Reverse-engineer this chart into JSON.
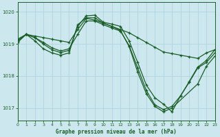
{
  "background_color": "#cce8ee",
  "grid_color": "#aed4dc",
  "line_color": "#1a5c28",
  "title": "Graphe pression niveau de la mer (hPa)",
  "xlim": [
    0,
    23
  ],
  "ylim": [
    1016.6,
    1020.3
  ],
  "yticks": [
    1017,
    1018,
    1019,
    1020
  ],
  "xticks": [
    0,
    1,
    2,
    3,
    4,
    5,
    6,
    7,
    8,
    9,
    10,
    11,
    12,
    13,
    14,
    15,
    16,
    17,
    18,
    19,
    20,
    21,
    22,
    23
  ],
  "series": [
    {
      "x": [
        0,
        1,
        2,
        3,
        4,
        5,
        6,
        7,
        8,
        9,
        10,
        11,
        12,
        13,
        14,
        15,
        16,
        17,
        18,
        19,
        20,
        21,
        22,
        23
      ],
      "y": [
        1019.15,
        1019.3,
        1019.25,
        1019.2,
        1019.15,
        1019.1,
        1019.05,
        1019.45,
        1019.8,
        1019.75,
        1019.65,
        1019.55,
        1019.45,
        1019.35,
        1019.2,
        1019.05,
        1018.9,
        1018.75,
        1018.7,
        1018.65,
        1018.6,
        1018.55,
        1018.72,
        1018.82
      ]
    },
    {
      "x": [
        0,
        1,
        2,
        3,
        4,
        5,
        6,
        7,
        8,
        9,
        10,
        11,
        12,
        13,
        14,
        15,
        16,
        17,
        18,
        19,
        20,
        21,
        22,
        23
      ],
      "y": [
        1019.1,
        1019.3,
        1019.2,
        1019.05,
        1018.88,
        1018.78,
        1018.85,
        1019.3,
        1019.72,
        1019.72,
        1019.6,
        1019.5,
        1019.4,
        1018.95,
        1018.25,
        1017.55,
        1017.1,
        1016.95,
        1017.05,
        1017.38,
        1017.8,
        1018.25,
        1018.42,
        1018.72
      ]
    },
    {
      "x": [
        0,
        1,
        2,
        3,
        4,
        5,
        6,
        7,
        8,
        9,
        10,
        11,
        12,
        13,
        14,
        15,
        16,
        17,
        18,
        19,
        20,
        21,
        22,
        23
      ],
      "y": [
        1019.1,
        1019.3,
        1019.2,
        1019.0,
        1018.82,
        1018.73,
        1018.8,
        1019.55,
        1019.88,
        1019.9,
        1019.68,
        1019.62,
        1019.55,
        1019.1,
        1018.42,
        1017.72,
        1017.32,
        1017.12,
        1016.88,
        1017.38,
        1017.82,
        1018.28,
        1018.48,
        1018.82
      ]
    },
    {
      "x": [
        0,
        1,
        2,
        3,
        4,
        5,
        6,
        7,
        8,
        9,
        10,
        11,
        12,
        13,
        14,
        15,
        16,
        17,
        18,
        21,
        22,
        23
      ],
      "y": [
        1019.05,
        1019.3,
        1019.1,
        1018.85,
        1018.72,
        1018.65,
        1018.72,
        1019.6,
        1019.82,
        1019.82,
        1019.65,
        1019.55,
        1019.42,
        1018.92,
        1018.12,
        1017.45,
        1017.05,
        1016.88,
        1017.0,
        1017.75,
        1018.3,
        1018.62
      ]
    }
  ]
}
